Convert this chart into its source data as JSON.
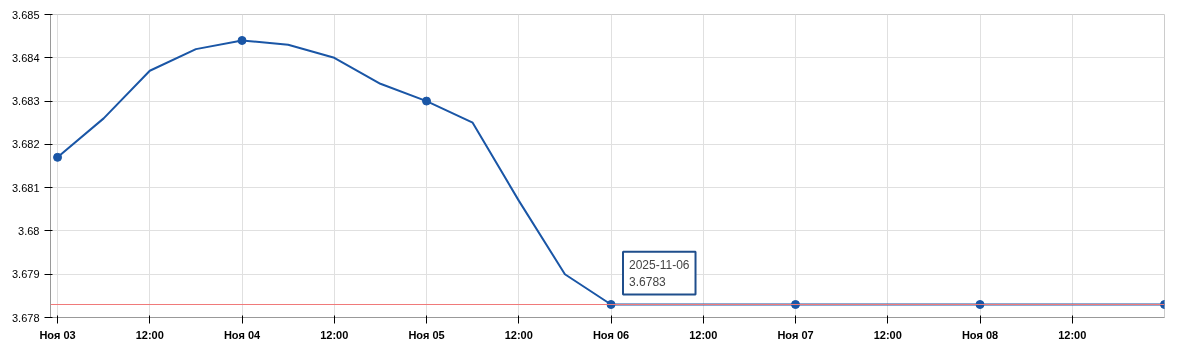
{
  "chart_data": {
    "type": "line",
    "x": [
      "2025-11-03",
      "2025-11-04",
      "2025-11-05",
      "2025-11-06",
      "2025-11-07",
      "2025-11-08",
      "2025-11-09"
    ],
    "series": [
      {
        "marker": "none",
        "color": "#1a56a6",
        "x": [
          "2025-11-03",
          "2025-11-03T06:00",
          "2025-11-03T12:00",
          "2025-11-03T18:00",
          "2025-11-04",
          "2025-11-04T06:00",
          "2025-11-04T12:00",
          "2025-11-04T18:00",
          "2025-11-05",
          "2025-11-05T06:00",
          "2025-11-05T12:00",
          "2025-11-05T18:00",
          "2025-11-06",
          "2025-11-07",
          "2025-11-08",
          "2025-11-09"
        ],
        "values": [
          3.6817,
          3.6826,
          3.6837,
          3.6842,
          3.6844,
          3.6843,
          3.684,
          3.6834,
          3.683,
          3.6825,
          3.6807,
          3.679,
          3.6783,
          3.6783,
          3.6783,
          3.6783
        ]
      },
      {
        "type": "scatter",
        "color": "#1a56a6",
        "values": [
          3.6817,
          3.6844,
          3.683,
          3.6783,
          3.6783,
          3.6783,
          3.6783
        ]
      }
    ],
    "xlim": [
      "2025-11-02T23:05",
      "2025-11-09"
    ],
    "xticks": [
      {
        "value": "2025-11-03",
        "label": "Ноя 03"
      },
      {
        "value": "2025-11-03T12:00",
        "label": "12:00"
      },
      {
        "value": "2025-11-04",
        "label": "Ноя 04"
      },
      {
        "value": "2025-11-04T12:00",
        "label": "12:00"
      },
      {
        "value": "2025-11-05",
        "label": "Ноя 05"
      },
      {
        "value": "2025-11-05T12:00",
        "label": "12:00"
      },
      {
        "value": "2025-11-06",
        "label": "Ноя 06"
      },
      {
        "value": "2025-11-06T12:00",
        "label": "12:00"
      },
      {
        "value": "2025-11-07",
        "label": "Ноя 07"
      },
      {
        "value": "2025-11-07T12:00",
        "label": "12:00"
      },
      {
        "value": "2025-11-08",
        "label": "Ноя 08"
      },
      {
        "value": "2025-11-08T12:00",
        "label": "12:00"
      }
    ],
    "ylim": [
      3.678,
      3.685
    ],
    "yticks": [
      3.678,
      3.679,
      3.68,
      3.681,
      3.682,
      3.683,
      3.684,
      3.685
    ],
    "ref_lines": [
      {
        "axis": "y",
        "value": 3.6783,
        "color": "#f07a7a"
      }
    ],
    "annotations": [
      {
        "text": "2025-11-06\n3.6783",
        "x": "2025-11-06",
        "y": 3.6783
      }
    ],
    "grid": true,
    "marker": "circle",
    "line_style": "solid"
  }
}
